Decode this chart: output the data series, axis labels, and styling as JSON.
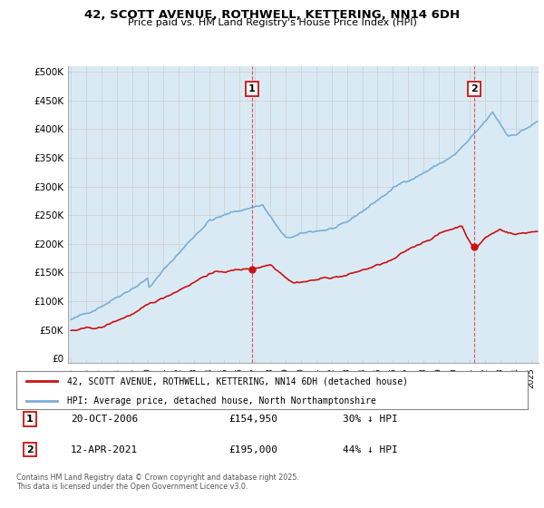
{
  "title": "42, SCOTT AVENUE, ROTHWELL, KETTERING, NN14 6DH",
  "subtitle": "Price paid vs. HM Land Registry's House Price Index (HPI)",
  "yticks": [
    0,
    50000,
    100000,
    150000,
    200000,
    250000,
    300000,
    350000,
    400000,
    450000,
    500000
  ],
  "ytick_labels": [
    "£0",
    "£50K",
    "£100K",
    "£150K",
    "£200K",
    "£250K",
    "£300K",
    "£350K",
    "£400K",
    "£450K",
    "£500K"
  ],
  "ylim": [
    -8000,
    510000
  ],
  "xlim_start": 1994.8,
  "xlim_end": 2025.5,
  "hpi_color": "#7aaed6",
  "hpi_fill_color": "#daeaf5",
  "price_color": "#cc1111",
  "marker1_x": 2006.8,
  "marker1_y": 154950,
  "marker1_label": "1",
  "marker2_x": 2021.3,
  "marker2_y": 195000,
  "marker2_label": "2",
  "vline_color": "#dd4444",
  "vline1_x": 2006.8,
  "vline2_x": 2021.3,
  "legend_line1": "42, SCOTT AVENUE, ROTHWELL, KETTERING, NN14 6DH (detached house)",
  "legend_line2": "HPI: Average price, detached house, North Northamptonshire",
  "table_row1": [
    "1",
    "20-OCT-2006",
    "£154,950",
    "30% ↓ HPI"
  ],
  "table_row2": [
    "2",
    "12-APR-2021",
    "£195,000",
    "44% ↓ HPI"
  ],
  "footnote": "Contains HM Land Registry data © Crown copyright and database right 2025.\nThis data is licensed under the Open Government Licence v3.0.",
  "background_color": "#ffffff",
  "grid_color": "#cccccc"
}
